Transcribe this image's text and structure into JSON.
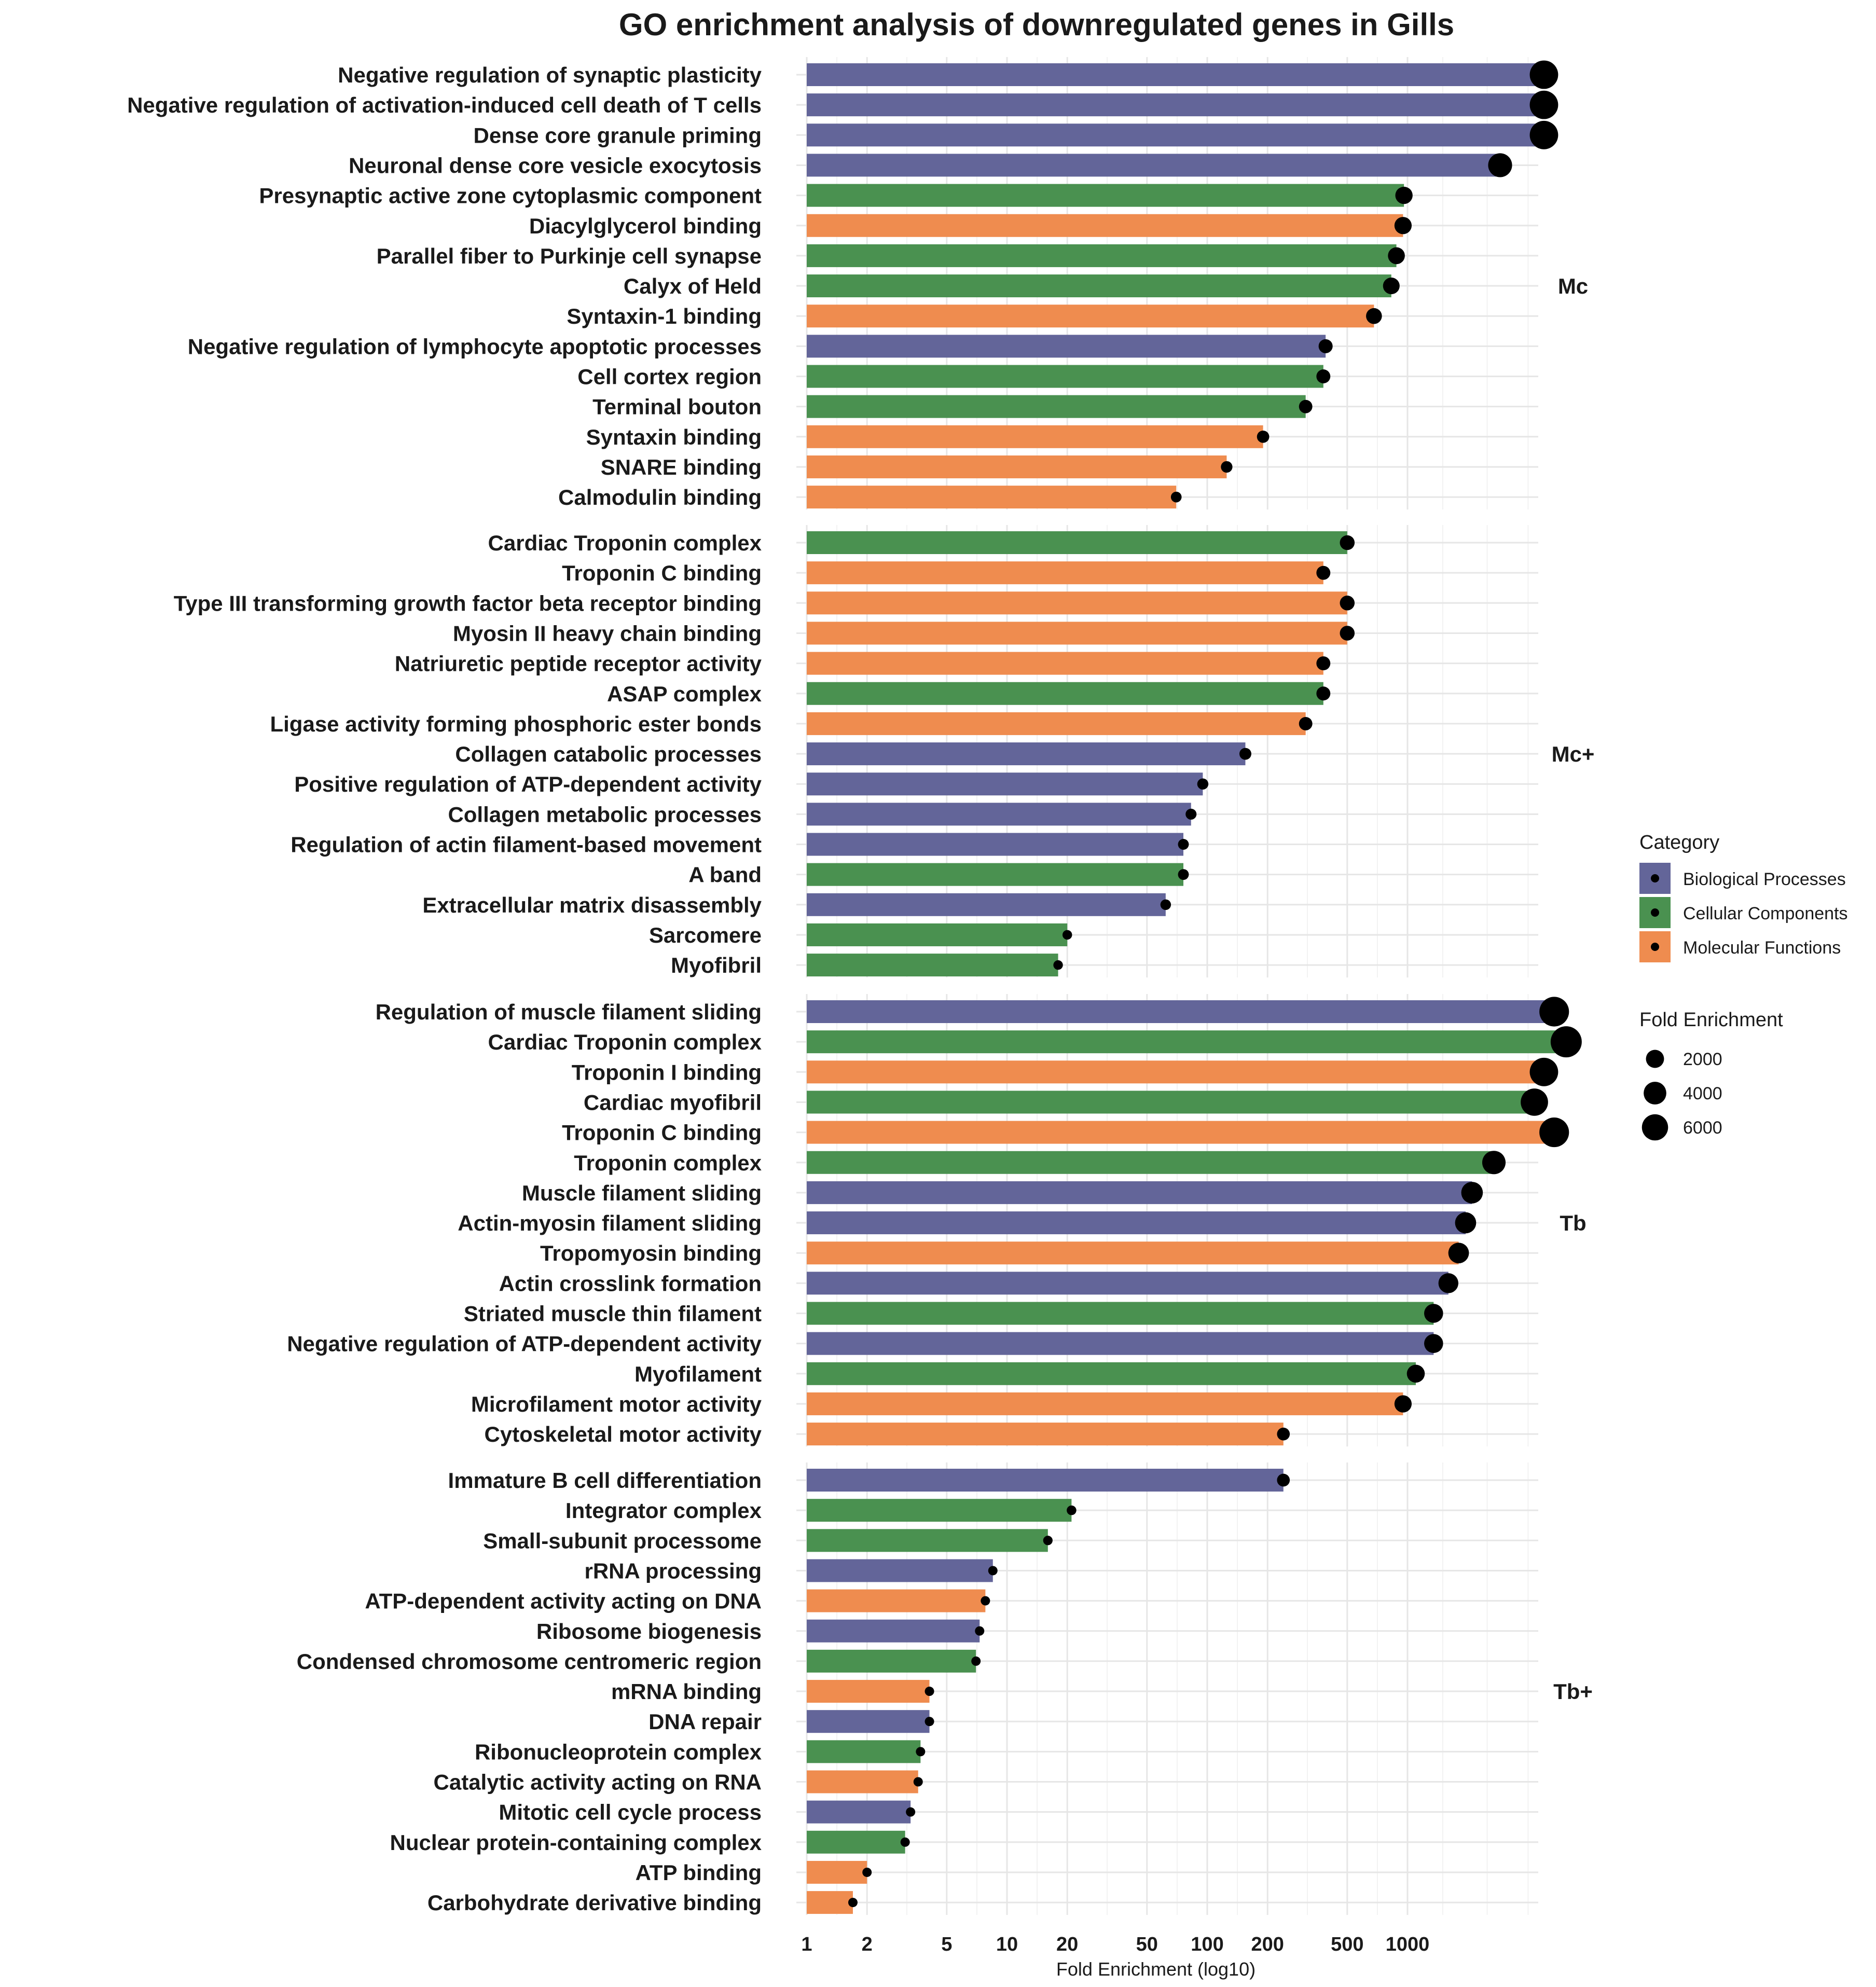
{
  "chart_data": {
    "type": "bar",
    "title": "GO enrichment analysis of downregulated genes in Gills",
    "xlabel": "Fold Enrichment (log10)",
    "xscale": "log10",
    "xlim": [
      1,
      6500
    ],
    "x_ticks": [
      {
        "value": 1,
        "label": "1"
      },
      {
        "value": 2,
        "label": "2"
      },
      {
        "value": 5,
        "label": "5"
      },
      {
        "value": 10,
        "label": "10"
      },
      {
        "value": 20,
        "label": "20"
      },
      {
        "value": 50,
        "label": "50"
      },
      {
        "value": 100,
        "label": "100"
      },
      {
        "value": 200,
        "label": "200"
      },
      {
        "value": 500,
        "label": "500"
      },
      {
        "value": 1000,
        "label": "1000"
      }
    ],
    "colors": {
      "Biological Processes": "#636599",
      "Cellular Components": "#4a9150",
      "Molecular Functions": "#ef8c4f",
      "point": "#000000",
      "grid": "#e6e6e6"
    },
    "legend": {
      "placement": "right",
      "category_title": "Category",
      "categories": [
        "Biological Processes",
        "Cellular Components",
        "Molecular Functions"
      ],
      "size_title": "Fold Enrichment",
      "size_values": [
        2000,
        4000,
        6000
      ],
      "size_labels": [
        "2000",
        "4000",
        "6000"
      ]
    },
    "panels": [
      {
        "name": "Mc",
        "items": [
          {
            "term": "Negative regulation of synaptic plasticity",
            "category": "Biological Processes",
            "value": 4800
          },
          {
            "term": "Negative regulation of activation-induced cell death of T cells",
            "category": "Biological Processes",
            "value": 4800
          },
          {
            "term": "Dense core granule priming",
            "category": "Biological Processes",
            "value": 4800
          },
          {
            "term": "Neuronal dense core vesicle exocytosis",
            "category": "Biological Processes",
            "value": 2900
          },
          {
            "term": "Presynaptic active zone cytoplasmic component",
            "category": "Cellular Components",
            "value": 960
          },
          {
            "term": "Diacylglycerol binding",
            "category": "Molecular Functions",
            "value": 950
          },
          {
            "term": "Parallel fiber to Purkinje cell synapse",
            "category": "Cellular Components",
            "value": 880
          },
          {
            "term": "Calyx of Held",
            "category": "Cellular Components",
            "value": 830
          },
          {
            "term": "Syntaxin-1 binding",
            "category": "Molecular Functions",
            "value": 680
          },
          {
            "term": "Negative regulation of lymphocyte apoptotic processes",
            "category": "Biological Processes",
            "value": 390
          },
          {
            "term": "Cell cortex region",
            "category": "Cellular Components",
            "value": 380
          },
          {
            "term": "Terminal bouton",
            "category": "Cellular Components",
            "value": 310
          },
          {
            "term": "Syntaxin binding",
            "category": "Molecular Functions",
            "value": 190
          },
          {
            "term": "SNARE binding",
            "category": "Molecular Functions",
            "value": 125
          },
          {
            "term": "Calmodulin binding",
            "category": "Molecular Functions",
            "value": 70
          }
        ]
      },
      {
        "name": "Mc+",
        "items": [
          {
            "term": "Cardiac Troponin complex",
            "category": "Cellular Components",
            "value": 500
          },
          {
            "term": "Troponin C binding",
            "category": "Molecular Functions",
            "value": 380
          },
          {
            "term": "Type III transforming growth factor beta receptor binding",
            "category": "Molecular Functions",
            "value": 500
          },
          {
            "term": "Myosin II heavy chain binding",
            "category": "Molecular Functions",
            "value": 500
          },
          {
            "term": "Natriuretic peptide receptor activity",
            "category": "Molecular Functions",
            "value": 380
          },
          {
            "term": "ASAP complex",
            "category": "Cellular Components",
            "value": 380
          },
          {
            "term": "Ligase activity forming phosphoric ester bonds",
            "category": "Molecular Functions",
            "value": 310
          },
          {
            "term": "Collagen catabolic processes",
            "category": "Biological Processes",
            "value": 155
          },
          {
            "term": "Positive regulation of ATP-dependent activity",
            "category": "Biological Processes",
            "value": 95
          },
          {
            "term": "Collagen metabolic processes",
            "category": "Biological Processes",
            "value": 83
          },
          {
            "term": "Regulation of actin filament-based movement",
            "category": "Biological Processes",
            "value": 76
          },
          {
            "term": "A band",
            "category": "Cellular Components",
            "value": 76
          },
          {
            "term": "Extracellular matrix disassembly",
            "category": "Biological Processes",
            "value": 62
          },
          {
            "term": "Sarcomere",
            "category": "Cellular Components",
            "value": 20
          },
          {
            "term": "Myofibril",
            "category": "Cellular Components",
            "value": 18
          }
        ]
      },
      {
        "name": "Tb",
        "items": [
          {
            "term": "Regulation of muscle filament sliding",
            "category": "Biological Processes",
            "value": 5400
          },
          {
            "term": "Cardiac Troponin complex",
            "category": "Cellular Components",
            "value": 6200
          },
          {
            "term": "Troponin I binding",
            "category": "Molecular Functions",
            "value": 4800
          },
          {
            "term": "Cardiac myofibril",
            "category": "Cellular Components",
            "value": 4300
          },
          {
            "term": "Troponin C binding",
            "category": "Molecular Functions",
            "value": 5400
          },
          {
            "term": "Troponin complex",
            "category": "Cellular Components",
            "value": 2700
          },
          {
            "term": "Muscle filament sliding",
            "category": "Biological Processes",
            "value": 2100
          },
          {
            "term": "Actin-myosin filament sliding",
            "category": "Biological Processes",
            "value": 1950
          },
          {
            "term": "Tropomyosin binding",
            "category": "Molecular Functions",
            "value": 1800
          },
          {
            "term": "Actin crosslink formation",
            "category": "Biological Processes",
            "value": 1600
          },
          {
            "term": "Striated muscle thin filament",
            "category": "Cellular Components",
            "value": 1350
          },
          {
            "term": "Negative regulation of ATP-dependent activity",
            "category": "Biological Processes",
            "value": 1350
          },
          {
            "term": "Myofilament",
            "category": "Cellular Components",
            "value": 1100
          },
          {
            "term": "Microfilament motor activity",
            "category": "Molecular Functions",
            "value": 950
          },
          {
            "term": "Cytoskeletal motor activity",
            "category": "Molecular Functions",
            "value": 240
          }
        ]
      },
      {
        "name": "Tb+",
        "items": [
          {
            "term": "Immature B cell differentiation",
            "category": "Biological Processes",
            "value": 240
          },
          {
            "term": "Integrator complex",
            "category": "Cellular Components",
            "value": 21
          },
          {
            "term": "Small-subunit processome",
            "category": "Cellular Components",
            "value": 16
          },
          {
            "term": "rRNA processing",
            "category": "Biological Processes",
            "value": 8.5
          },
          {
            "term": "ATP-dependent activity acting on DNA",
            "category": "Molecular Functions",
            "value": 7.8
          },
          {
            "term": "Ribosome biogenesis",
            "category": "Biological Processes",
            "value": 7.3
          },
          {
            "term": "Condensed chromosome centromeric region",
            "category": "Cellular Components",
            "value": 7
          },
          {
            "term": "mRNA binding",
            "category": "Molecular Functions",
            "value": 4.1
          },
          {
            "term": "DNA repair",
            "category": "Biological Processes",
            "value": 4.1
          },
          {
            "term": "Ribonucleoprotein complex",
            "category": "Cellular Components",
            "value": 3.7
          },
          {
            "term": "Catalytic activity acting on RNA",
            "category": "Molecular Functions",
            "value": 3.6
          },
          {
            "term": "Mitotic cell cycle process",
            "category": "Biological Processes",
            "value": 3.3
          },
          {
            "term": "Nuclear protein-containing complex",
            "category": "Cellular Components",
            "value": 3.1
          },
          {
            "term": "ATP binding",
            "category": "Molecular Functions",
            "value": 2
          },
          {
            "term": "Carbohydrate derivative binding",
            "category": "Molecular Functions",
            "value": 1.7
          }
        ]
      }
    ]
  }
}
